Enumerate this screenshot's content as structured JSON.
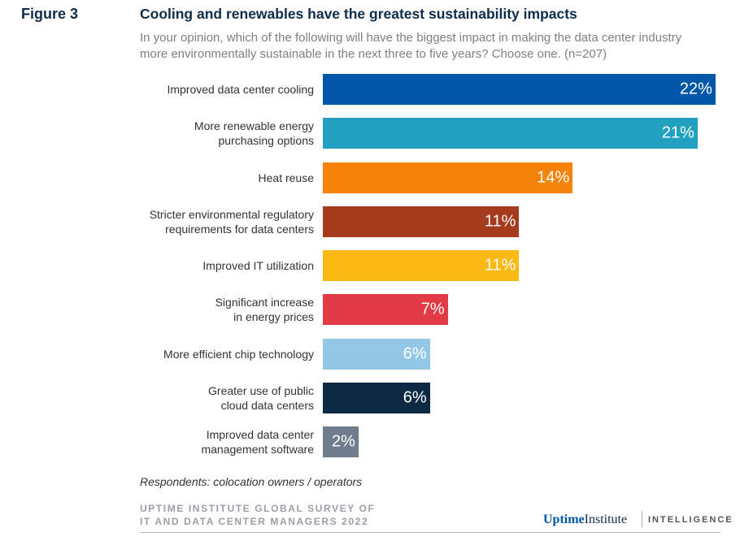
{
  "figure_label": "Figure 3",
  "chart_data": {
    "type": "bar",
    "orientation": "horizontal",
    "title": "Cooling and renewables have the greatest sustainability impacts",
    "subtitle": "In your opinion, which of the following will have the biggest impact in making the data center industry more environmentally sustainable in the next three to five years? Choose one. (n=207)",
    "categories": [
      "Improved data center cooling",
      "More renewable energy\npurchasing options",
      "Heat reuse",
      "Stricter environmental regulatory\nrequirements for data centers",
      "Improved IT utilization",
      "Significant increase\nin energy prices",
      "More efficient chip technology",
      "Greater use of public\ncloud data centers",
      "Improved data center\nmanagement software"
    ],
    "values": [
      22,
      21,
      14,
      11,
      11,
      7,
      6,
      6,
      2
    ],
    "value_labels": [
      "22%",
      "21%",
      "14%",
      "11%",
      "11%",
      "7%",
      "6%",
      "6%",
      "2%"
    ],
    "colors": [
      "#0057a8",
      "#22a0c0",
      "#f5820a",
      "#a63a1c",
      "#fdb913",
      "#e23b45",
      "#92c8e6",
      "#0c2a44",
      "#6f7d8c"
    ],
    "unit": "%",
    "grid": false
  },
  "footnote": "Respondents: colocation owners / operators",
  "source": "UPTIME INSTITUTE GLOBAL SURVEY OF\nIT AND DATA CENTER MANAGERS 2022",
  "logo": {
    "brand_a": "Uptime",
    "brand_b": "Institute",
    "suffix": "INTELLIGENCE"
  }
}
